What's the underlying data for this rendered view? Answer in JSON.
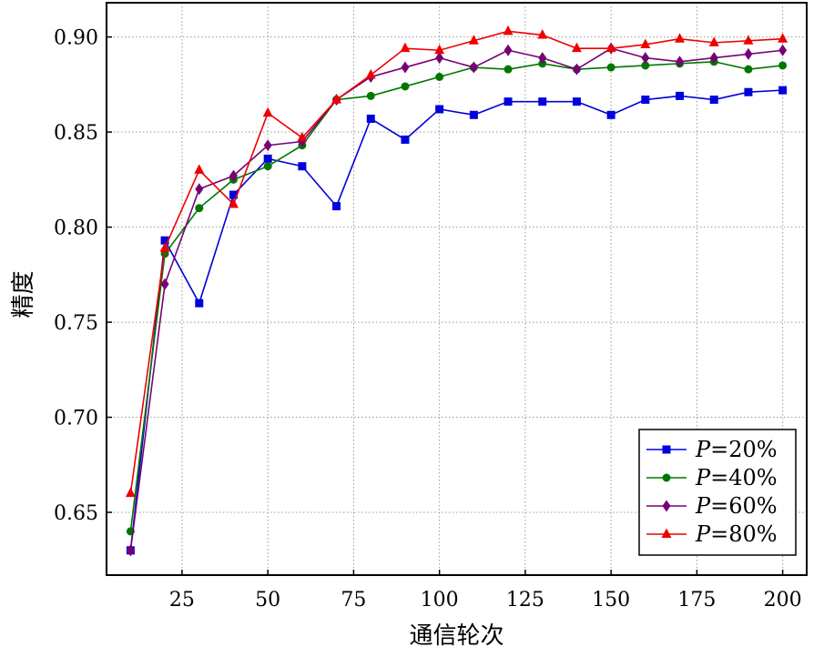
{
  "chart_data": {
    "type": "line",
    "xlabel": "通信轮次",
    "ylabel": "精度",
    "xlim": [
      3,
      207
    ],
    "ylim": [
      0.617,
      0.918
    ],
    "xticks": [
      25,
      50,
      75,
      100,
      125,
      150,
      175,
      200
    ],
    "yticks": [
      0.65,
      0.7,
      0.75,
      0.8,
      0.85,
      0.9
    ],
    "xtick_labels": [
      "25",
      "50",
      "75",
      "100",
      "125",
      "150",
      "175",
      "200"
    ],
    "ytick_labels": [
      "0.65",
      "0.70",
      "0.75",
      "0.80",
      "0.85",
      "0.90"
    ],
    "grid": true,
    "legend_position": "lower-right",
    "x": [
      10,
      20,
      30,
      40,
      50,
      60,
      70,
      80,
      90,
      100,
      110,
      120,
      130,
      140,
      150,
      160,
      170,
      180,
      190,
      200
    ],
    "series": [
      {
        "name": "P=20%",
        "legend_var": "P",
        "legend_suffix": "=20%",
        "color": "#0000dd",
        "marker": "square",
        "values": [
          0.63,
          0.793,
          0.76,
          0.817,
          0.836,
          0.832,
          0.811,
          0.857,
          0.846,
          0.862,
          0.859,
          0.866,
          0.866,
          0.866,
          0.859,
          0.867,
          0.869,
          0.867,
          0.871,
          0.872
        ]
      },
      {
        "name": "P=40%",
        "legend_var": "P",
        "legend_suffix": "=40%",
        "color": "#007700",
        "marker": "circle",
        "values": [
          0.64,
          0.786,
          0.81,
          0.825,
          0.832,
          0.843,
          0.867,
          0.869,
          0.874,
          0.879,
          0.884,
          0.883,
          0.886,
          0.883,
          0.884,
          0.885,
          0.886,
          0.887,
          0.883,
          0.885
        ]
      },
      {
        "name": "P=60%",
        "legend_var": "P",
        "legend_suffix": "=60%",
        "color": "#770077",
        "marker": "diamond",
        "values": [
          0.63,
          0.77,
          0.82,
          0.827,
          0.843,
          0.845,
          0.867,
          0.879,
          0.884,
          0.889,
          0.884,
          0.893,
          0.889,
          0.883,
          0.894,
          0.889,
          0.887,
          0.889,
          0.891,
          0.893
        ]
      },
      {
        "name": "P=80%",
        "legend_var": "P",
        "legend_suffix": "=80%",
        "color": "#ee0000",
        "marker": "triangle",
        "values": [
          0.66,
          0.789,
          0.83,
          0.812,
          0.86,
          0.847,
          0.867,
          0.88,
          0.894,
          0.893,
          0.898,
          0.903,
          0.901,
          0.894,
          0.894,
          0.896,
          0.899,
          0.897,
          0.898,
          0.899
        ]
      }
    ]
  }
}
